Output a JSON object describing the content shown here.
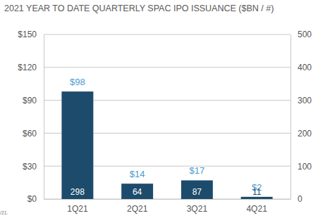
{
  "chart_data": {
    "type": "bar",
    "title": "2021 YEAR TO DATE QUARTERLY SPAC IPO ISSUANCE ($BN / #)",
    "categories": [
      "1Q21",
      "2Q21",
      "3Q21",
      "4Q21"
    ],
    "values": [
      98,
      14,
      17,
      2
    ],
    "value_labels": [
      "$98",
      "$14",
      "$17",
      "$2"
    ],
    "data_labels": true,
    "counts": [
      298,
      64,
      87,
      11
    ],
    "color": "#1d4b6c",
    "ylim": [
      0,
      150
    ],
    "yticks": [
      {
        "value": 0,
        "label": "$0"
      },
      {
        "value": 30,
        "label": "$30"
      },
      {
        "value": 60,
        "label": "$60"
      },
      {
        "value": 90,
        "label": "$90"
      },
      {
        "value": 120,
        "label": "$120"
      },
      {
        "value": 150,
        "label": "$150"
      }
    ],
    "y2lim": [
      0,
      500
    ],
    "y2ticks": [
      0,
      100,
      200,
      300,
      400,
      500
    ],
    "grid": true,
    "note": "/21."
  }
}
